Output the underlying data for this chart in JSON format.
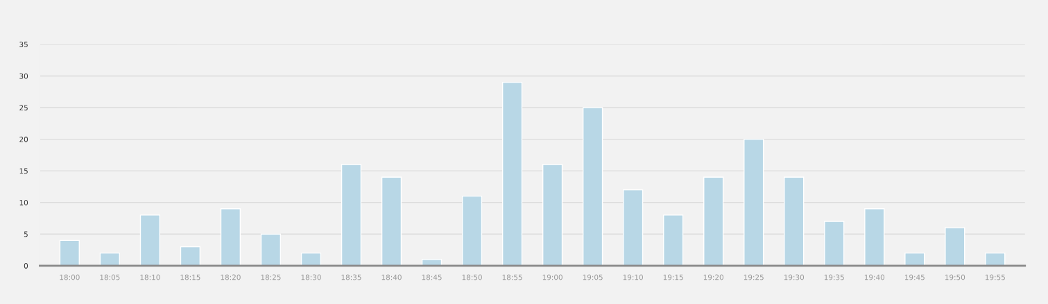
{
  "chart_data": {
    "type": "bar",
    "categories": [
      "18:00",
      "18:05",
      "18:10",
      "18:15",
      "18:20",
      "18:25",
      "18:30",
      "18:35",
      "18:40",
      "18:45",
      "18:50",
      "18:55",
      "19:00",
      "19:05",
      "19:10",
      "19:15",
      "19:20",
      "19:25",
      "19:30",
      "19:35",
      "19:40",
      "19:45",
      "19:50",
      "19:55"
    ],
    "values": [
      4,
      2,
      8,
      3,
      9,
      5,
      2,
      16,
      14,
      1,
      11,
      29,
      16,
      25,
      12,
      8,
      14,
      20,
      14,
      7,
      9,
      2,
      6,
      2
    ],
    "color": "#b8d7e6",
    "ylim": [
      0,
      35
    ],
    "yticks": [
      0,
      5,
      10,
      15,
      20,
      25,
      30,
      35
    ],
    "grid": "y"
  }
}
